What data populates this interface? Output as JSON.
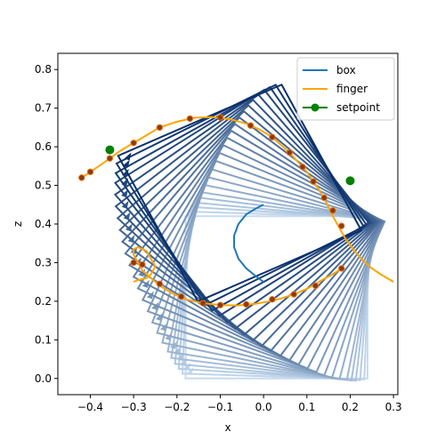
{
  "chart_data": {
    "type": "line",
    "xlabel": "x",
    "ylabel": "z",
    "xlim": [
      -0.475,
      0.31
    ],
    "ylim": [
      -0.042,
      0.842
    ],
    "x_ticks": [
      -0.4,
      -0.3,
      -0.2,
      -0.1,
      0.0,
      0.1,
      0.2,
      0.3
    ],
    "x_tick_labels": [
      "−0.4",
      "−0.3",
      "−0.2",
      "−0.1",
      "0.0",
      "0.1",
      "0.2",
      "0.3"
    ],
    "y_ticks": [
      0.0,
      0.1,
      0.2,
      0.3,
      0.4,
      0.5,
      0.6,
      0.7,
      0.8
    ],
    "y_tick_labels": [
      "0.0",
      "0.1",
      "0.2",
      "0.3",
      "0.4",
      "0.5",
      "0.6",
      "0.7",
      "0.8"
    ],
    "grid": false,
    "legend": {
      "placement": "upper right",
      "entries": [
        {
          "label": "box",
          "color": "#1f77b4",
          "marker": "none"
        },
        {
          "label": "finger",
          "color": "#ffa500",
          "marker": "none"
        },
        {
          "label": "setpoint",
          "color": "#008000",
          "marker": "circle"
        }
      ]
    },
    "box_path": {
      "x": [
        0.0,
        -0.018,
        -0.04,
        -0.058,
        -0.068,
        -0.068,
        -0.058,
        -0.04,
        -0.018,
        0.0
      ],
      "z": [
        0.45,
        0.44,
        0.425,
        0.4,
        0.37,
        0.34,
        0.31,
        0.285,
        0.265,
        0.25
      ]
    },
    "box_frames": {
      "size": 0.42,
      "frames": [
        {
          "cx": 0.03,
          "cz": 0.21,
          "angle": 0.0
        },
        {
          "cx": 0.03,
          "cz": 0.215,
          "angle": -2.0
        },
        {
          "cx": 0.028,
          "cz": 0.22,
          "angle": -4.0
        },
        {
          "cx": 0.026,
          "cz": 0.225,
          "angle": -6.0
        },
        {
          "cx": 0.024,
          "cz": 0.232,
          "angle": -8.0
        },
        {
          "cx": 0.022,
          "cz": 0.24,
          "angle": -10.0
        },
        {
          "cx": 0.018,
          "cz": 0.25,
          "angle": -13.0
        },
        {
          "cx": 0.014,
          "cz": 0.262,
          "angle": -16.0
        },
        {
          "cx": 0.01,
          "cz": 0.275,
          "angle": -19.0
        },
        {
          "cx": 0.006,
          "cz": 0.29,
          "angle": -22.0
        },
        {
          "cx": 0.0,
          "cz": 0.305,
          "angle": -25.0
        },
        {
          "cx": -0.006,
          "cz": 0.32,
          "angle": -28.0
        },
        {
          "cx": -0.012,
          "cz": 0.335,
          "angle": -31.0
        },
        {
          "cx": -0.018,
          "cz": 0.35,
          "angle": -34.0
        },
        {
          "cx": -0.025,
          "cz": 0.365,
          "angle": -37.0
        },
        {
          "cx": -0.03,
          "cz": 0.38,
          "angle": -40.0
        },
        {
          "cx": -0.035,
          "cz": 0.395,
          "angle": -43.0
        },
        {
          "cx": -0.04,
          "cz": 0.41,
          "angle": -46.0
        },
        {
          "cx": -0.045,
          "cz": 0.425,
          "angle": -49.0
        },
        {
          "cx": -0.048,
          "cz": 0.44,
          "angle": -52.0
        },
        {
          "cx": -0.05,
          "cz": 0.455,
          "angle": -55.0
        },
        {
          "cx": -0.052,
          "cz": 0.465,
          "angle": -58.0
        },
        {
          "cx": -0.054,
          "cz": 0.475,
          "angle": -61.0
        },
        {
          "cx": -0.055,
          "cz": 0.48,
          "angle": -64.0
        }
      ]
    },
    "finger": {
      "x": [
        -0.42,
        -0.4,
        -0.38,
        -0.355,
        -0.33,
        -0.3,
        -0.27,
        -0.24,
        -0.2,
        -0.16,
        -0.12,
        -0.08,
        -0.04,
        -0.01,
        0.02,
        0.04,
        0.06,
        0.08,
        0.1,
        0.115,
        0.13,
        0.145,
        0.16,
        0.175,
        0.19,
        0.21,
        0.23,
        0.25,
        0.27,
        0.3
      ],
      "z": [
        0.52,
        0.535,
        0.55,
        0.57,
        0.59,
        0.61,
        0.63,
        0.65,
        0.665,
        0.675,
        0.677,
        0.672,
        0.66,
        0.645,
        0.625,
        0.605,
        0.585,
        0.56,
        0.535,
        0.51,
        0.485,
        0.455,
        0.42,
        0.39,
        0.36,
        0.33,
        0.305,
        0.285,
        0.27,
        0.25
      ]
    },
    "finger_lower": {
      "x": [
        0.18,
        0.16,
        0.14,
        0.12,
        0.1,
        0.07,
        0.04,
        0.01,
        -0.02,
        -0.06,
        -0.1,
        -0.14,
        -0.18,
        -0.21,
        -0.24,
        -0.26,
        -0.28,
        -0.29,
        -0.3,
        -0.3,
        -0.29,
        -0.27,
        -0.26,
        -0.25,
        -0.26,
        -0.27,
        -0.29,
        -0.3
      ],
      "z": [
        0.285,
        0.27,
        0.258,
        0.245,
        0.232,
        0.218,
        0.207,
        0.199,
        0.193,
        0.189,
        0.19,
        0.195,
        0.205,
        0.22,
        0.24,
        0.26,
        0.28,
        0.3,
        0.32,
        0.335,
        0.34,
        0.33,
        0.31,
        0.29,
        0.27,
        0.26,
        0.255,
        0.25
      ]
    },
    "finger_markers": {
      "x": [
        -0.42,
        -0.4,
        -0.355,
        -0.3,
        -0.24,
        -0.17,
        -0.1,
        -0.03,
        0.02,
        0.06,
        0.09,
        0.115,
        0.14,
        0.16,
        0.18,
        0.18,
        0.12,
        0.07,
        0.02,
        -0.04,
        -0.1,
        -0.14,
        -0.19,
        -0.24,
        -0.28,
        -0.3
      ],
      "z": [
        0.52,
        0.535,
        0.57,
        0.61,
        0.65,
        0.673,
        0.676,
        0.655,
        0.625,
        0.585,
        0.548,
        0.51,
        0.468,
        0.435,
        0.395,
        0.285,
        0.24,
        0.218,
        0.205,
        0.192,
        0.19,
        0.195,
        0.212,
        0.245,
        0.295,
        0.3
      ]
    },
    "setpoint": {
      "x": [
        -0.355,
        0.2
      ],
      "z": [
        0.592,
        0.512
      ]
    }
  }
}
